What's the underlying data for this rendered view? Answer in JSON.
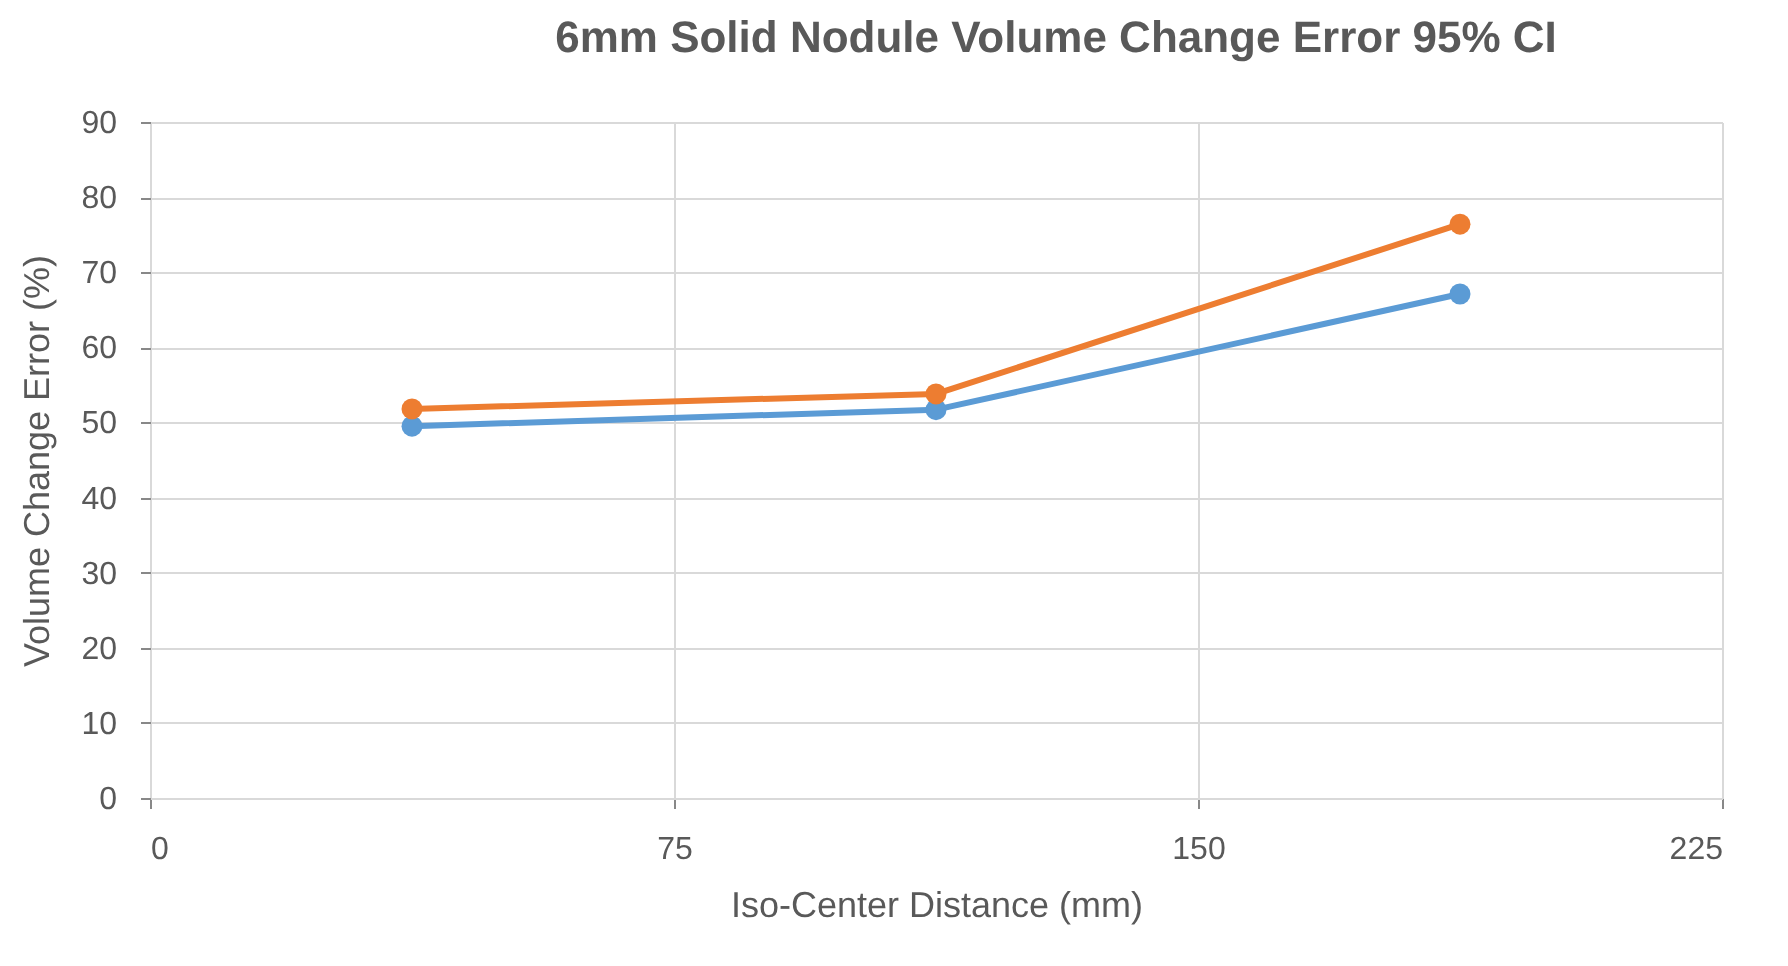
{
  "chart_data": {
    "type": "line",
    "title": "6mm Solid Nodule Volume Change Error 95% CI",
    "xlabel": "Iso-Center Distance (mm)",
    "ylabel": "Volume Change Error (%)",
    "x": [
      37.5,
      112.5,
      187.5
    ],
    "series": [
      {
        "color": "#5b9bd5",
        "values": [
          49.5,
          51.7,
          67.1
        ]
      },
      {
        "color": "#ed7d31",
        "values": [
          51.8,
          53.8,
          76.4
        ]
      }
    ],
    "xlim": [
      0,
      225
    ],
    "xticks": [
      0,
      75,
      150,
      225
    ],
    "ylim": [
      0,
      90
    ],
    "yticks": [
      0,
      10,
      20,
      30,
      40,
      50,
      60,
      70,
      80,
      90
    ],
    "grid": true,
    "marker": "circle",
    "line_style": "solid",
    "legend": false
  }
}
